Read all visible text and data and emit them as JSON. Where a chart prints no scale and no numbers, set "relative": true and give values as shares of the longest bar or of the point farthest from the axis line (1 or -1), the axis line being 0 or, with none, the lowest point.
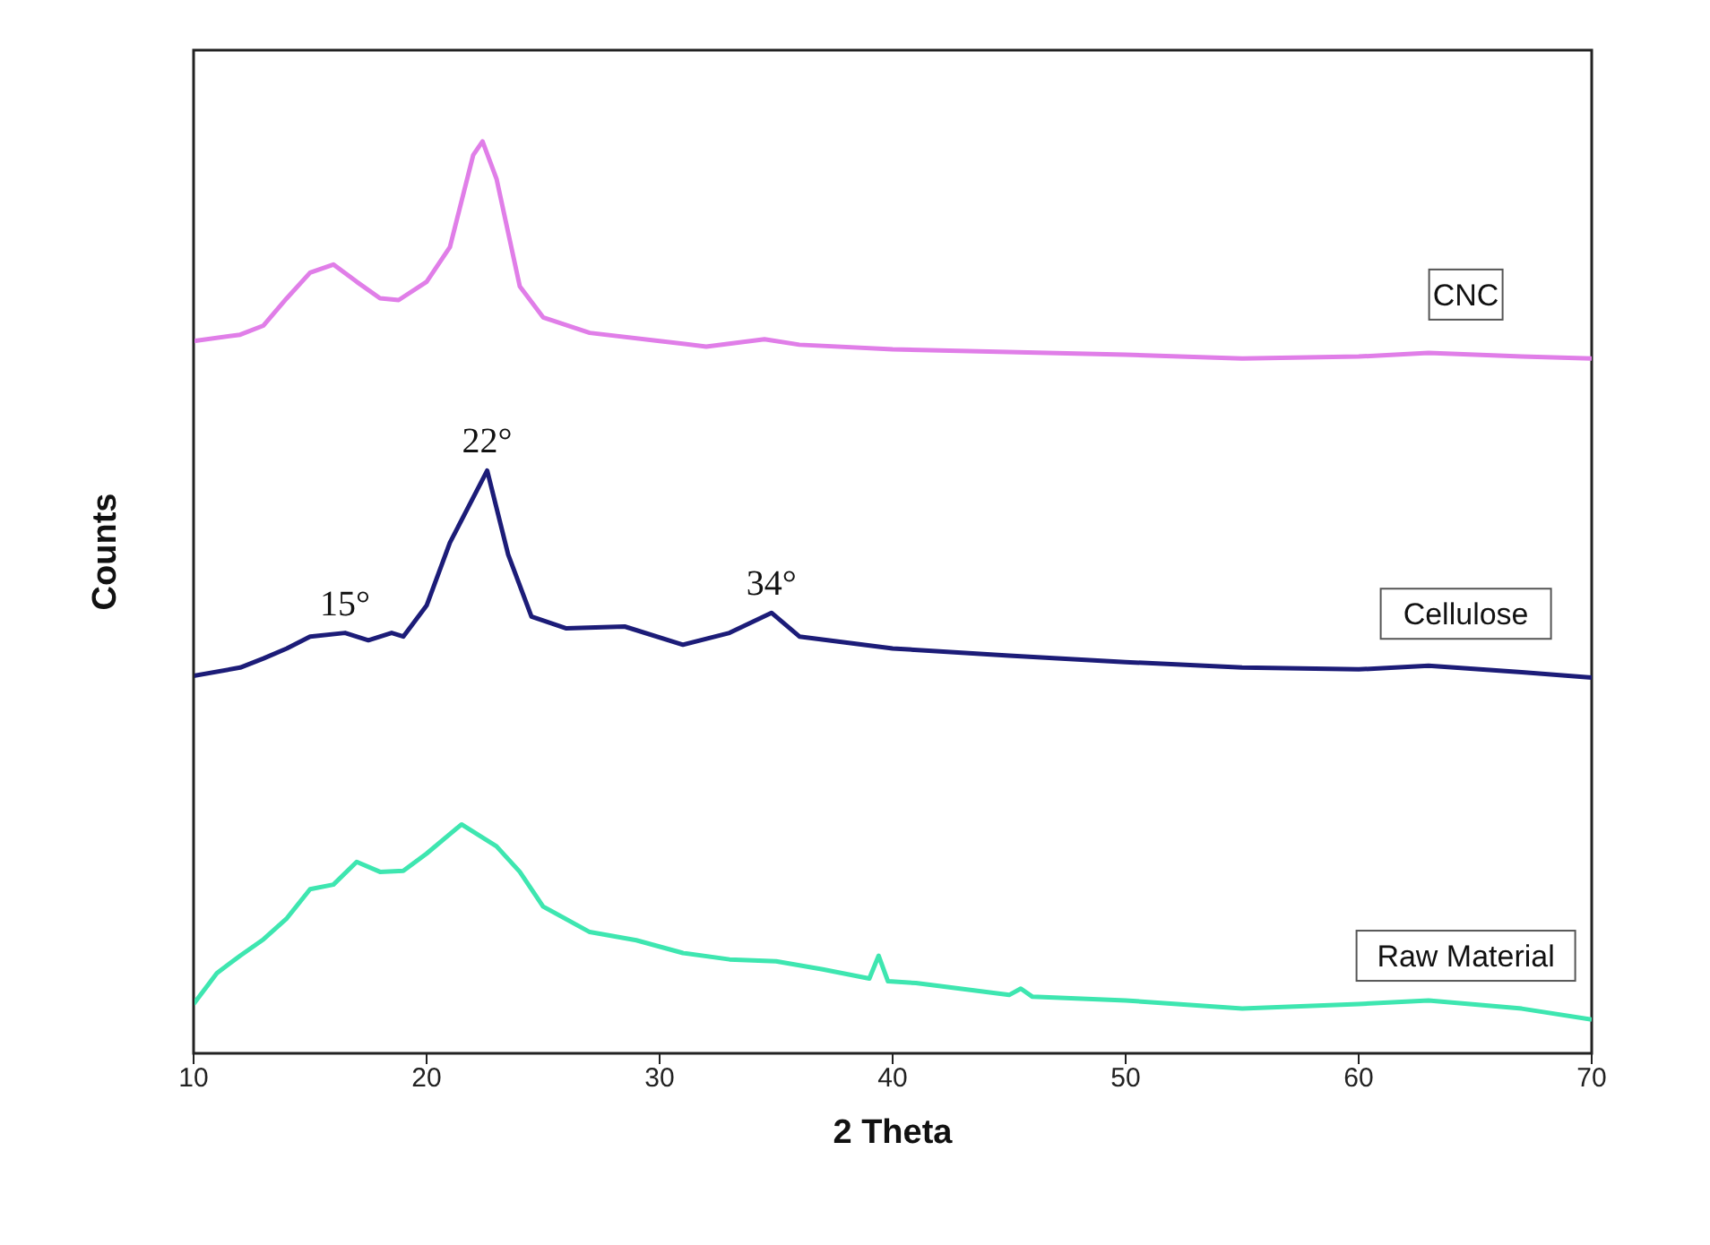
{
  "chart_data": {
    "type": "line",
    "xlabel": "2 Theta",
    "ylabel": "Counts",
    "relative": true,
    "xlim": [
      10,
      70
    ],
    "xticks": [
      10,
      20,
      30,
      40,
      50,
      60,
      70
    ],
    "legend": false,
    "marker": "none",
    "line_style": "solid",
    "annotations": [
      {
        "text": "15°",
        "x": 16.5,
        "y": 0.461
      },
      {
        "text": "22°",
        "x": 22.6,
        "y": 0.639
      },
      {
        "text": "34°",
        "x": 34.8,
        "y": 0.483
      }
    ],
    "series": [
      {
        "name": "CNC",
        "color": "#e07ee8",
        "x": [
          10,
          12,
          13,
          14,
          15,
          16,
          17,
          18,
          18.8,
          20,
          21,
          22,
          22.4,
          23,
          24,
          25,
          27,
          30,
          32,
          34.5,
          36,
          40,
          50,
          55,
          60,
          63,
          67,
          70
        ],
        "values": [
          0.781,
          0.788,
          0.798,
          0.828,
          0.856,
          0.865,
          0.846,
          0.828,
          0.826,
          0.846,
          0.884,
          0.985,
          1,
          0.959,
          0.841,
          0.807,
          0.79,
          0.781,
          0.775,
          0.783,
          0.777,
          0.772,
          0.766,
          0.762,
          0.764,
          0.768,
          0.764,
          0.762
        ]
      },
      {
        "name": "Cellulose",
        "color": "#1c1c78",
        "x": [
          10,
          12,
          13,
          14,
          15,
          16.5,
          17.5,
          18.5,
          19,
          20,
          21,
          22.6,
          23.5,
          24.5,
          26,
          28.5,
          31,
          33,
          34.8,
          36,
          40,
          45,
          50,
          55,
          60,
          63,
          67,
          70
        ],
        "values": [
          0.414,
          0.423,
          0.433,
          0.444,
          0.457,
          0.461,
          0.453,
          0.461,
          0.457,
          0.491,
          0.56,
          0.639,
          0.547,
          0.479,
          0.466,
          0.468,
          0.448,
          0.461,
          0.483,
          0.457,
          0.444,
          0.436,
          0.429,
          0.423,
          0.421,
          0.425,
          0.418,
          0.412
        ]
      },
      {
        "name": "Raw Material",
        "color": "#3ee6b0",
        "x": [
          10,
          11,
          12,
          13,
          14,
          15,
          16,
          17,
          18,
          19,
          20,
          21.5,
          23,
          24,
          25,
          27,
          29,
          31,
          33,
          35,
          37,
          39,
          39.4,
          39.8,
          41,
          45,
          45.5,
          46,
          50,
          55,
          60,
          63,
          67,
          70
        ],
        "values": [
          0.054,
          0.088,
          0.107,
          0.125,
          0.148,
          0.18,
          0.185,
          0.21,
          0.199,
          0.2,
          0.219,
          0.251,
          0.227,
          0.199,
          0.161,
          0.133,
          0.124,
          0.11,
          0.103,
          0.101,
          0.092,
          0.082,
          0.107,
          0.079,
          0.077,
          0.064,
          0.071,
          0.062,
          0.058,
          0.049,
          0.054,
          0.058,
          0.049,
          0.037
        ]
      }
    ]
  }
}
